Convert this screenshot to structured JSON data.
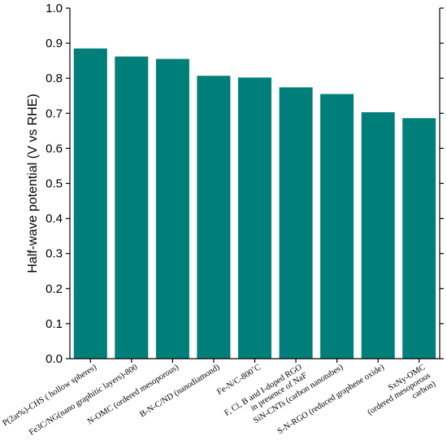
{
  "chart_data": {
    "type": "bar",
    "title": "",
    "xlabel": "",
    "ylabel": "Half-wave potential (V vs RHE)",
    "ylim": [
      0.0,
      1.0
    ],
    "yticks": [
      "0.0",
      "0.1",
      "0.2",
      "0.3",
      "0.4",
      "0.5",
      "0.6",
      "0.7",
      "0.8",
      "0.9",
      "1.0"
    ],
    "bar_color": "#007f7a",
    "grid": false,
    "categories": [
      [
        "P(2at%)-CHS ( hollow spheres)"
      ],
      [
        "Fe3C/NG(nano graphitic layers)-800"
      ],
      [
        "N-OMC (ordered mesoporous)"
      ],
      [
        "B-N-C/ND (nanodiamond)"
      ],
      [
        "Fe-N/C-800˚C"
      ],
      [
        "F, Cl, B and I-doped RGO",
        "in presence of NaF"
      ],
      [
        "SiN-CNTs (carbon nanotubes)"
      ],
      [
        "S-N-RGO (reduced graphene oxide)"
      ],
      [
        "SxNy-OMC",
        "(ordered mesoporous",
        "carbon)"
      ]
    ],
    "values": [
      0.885,
      0.862,
      0.855,
      0.807,
      0.802,
      0.774,
      0.755,
      0.703,
      0.686
    ]
  }
}
